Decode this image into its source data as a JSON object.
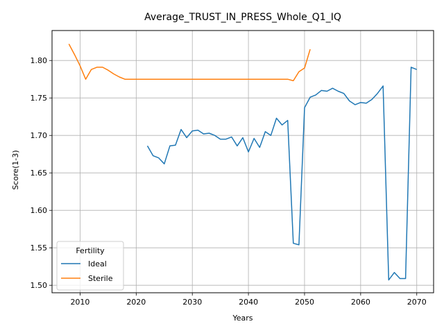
{
  "chart_data": {
    "type": "line",
    "title": "Average_TRUST_IN_PRESS_Whole_Q1_IQ",
    "xlabel": "Years",
    "ylabel": "Score(1-3)",
    "xlim": [
      2005,
      2073
    ],
    "ylim": [
      1.49,
      1.84
    ],
    "x_ticks": [
      2010,
      2020,
      2030,
      2040,
      2050,
      2060,
      2070
    ],
    "y_ticks": [
      1.5,
      1.55,
      1.6,
      1.65,
      1.7,
      1.75,
      1.8
    ],
    "x_tick_labels": [
      "2010",
      "2020",
      "2030",
      "2040",
      "2050",
      "2060",
      "2070"
    ],
    "y_tick_labels": [
      "1.50",
      "1.55",
      "1.60",
      "1.65",
      "1.70",
      "1.75",
      "1.80"
    ],
    "grid": true,
    "legend": {
      "title": "Fertility",
      "placement": "lower-left"
    },
    "series": [
      {
        "name": "Ideal",
        "color": "#1f77b4",
        "x": [
          2022,
          2023,
          2024,
          2025,
          2026,
          2027,
          2028,
          2029,
          2030,
          2031,
          2032,
          2033,
          2034,
          2035,
          2036,
          2037,
          2038,
          2039,
          2040,
          2041,
          2042,
          2043,
          2044,
          2045,
          2046,
          2047,
          2048,
          2049,
          2050,
          2051,
          2052,
          2053,
          2054,
          2055,
          2056,
          2057,
          2058,
          2059,
          2060,
          2061,
          2062,
          2063,
          2064,
          2065,
          2066,
          2067,
          2068,
          2069,
          2070
        ],
        "y": [
          1.686,
          1.673,
          1.67,
          1.662,
          1.686,
          1.687,
          1.708,
          1.697,
          1.706,
          1.707,
          1.702,
          1.703,
          1.7,
          1.695,
          1.695,
          1.698,
          1.686,
          1.697,
          1.678,
          1.696,
          1.684,
          1.705,
          1.7,
          1.723,
          1.714,
          1.72,
          1.556,
          1.554,
          1.737,
          1.751,
          1.754,
          1.76,
          1.759,
          1.763,
          1.759,
          1.756,
          1.746,
          1.741,
          1.744,
          1.743,
          1.748,
          1.756,
          1.766,
          1.507,
          1.517,
          1.509,
          1.509,
          1.791,
          1.788
        ]
      },
      {
        "name": "Sterile",
        "color": "#ff7f0e",
        "x": [
          2008,
          2009,
          2010,
          2011,
          2012,
          2013,
          2014,
          2015,
          2016,
          2017,
          2018,
          2019,
          2020,
          2021,
          2022,
          2023,
          2024,
          2025,
          2026,
          2027,
          2028,
          2029,
          2030,
          2031,
          2032,
          2033,
          2034,
          2035,
          2036,
          2037,
          2038,
          2039,
          2040,
          2041,
          2042,
          2043,
          2044,
          2045,
          2046,
          2047,
          2048,
          2049,
          2050,
          2051
        ],
        "y": [
          1.822,
          1.808,
          1.793,
          1.775,
          1.788,
          1.791,
          1.791,
          1.787,
          1.782,
          1.778,
          1.775,
          1.775,
          1.775,
          1.775,
          1.775,
          1.775,
          1.775,
          1.775,
          1.775,
          1.775,
          1.775,
          1.775,
          1.775,
          1.775,
          1.775,
          1.775,
          1.775,
          1.775,
          1.775,
          1.775,
          1.775,
          1.775,
          1.775,
          1.775,
          1.775,
          1.775,
          1.775,
          1.775,
          1.775,
          1.775,
          1.773,
          1.785,
          1.79,
          1.815
        ]
      }
    ]
  }
}
